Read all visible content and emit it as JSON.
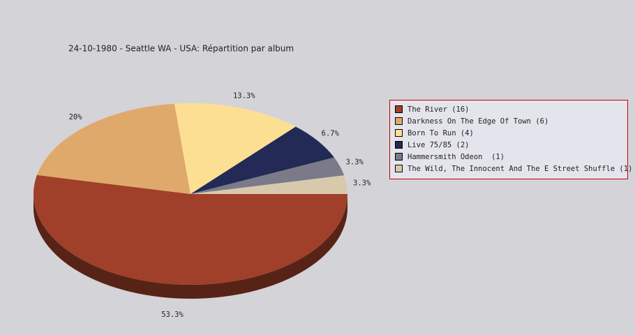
{
  "chart_data": {
    "type": "pie",
    "title": "24-10-1980 - Seattle WA - USA:  Répartition par album",
    "categories": [
      "The River (16)",
      "Darkness On The Edge Of Town (6)",
      "Born To Run (4)",
      "Live 75/85 (2)",
      "Hammersmith Odeon  (1)",
      "The Wild, The Innocent And The E Street Shuffle (1)"
    ],
    "values": [
      53.3,
      20,
      13.3,
      6.7,
      3.3,
      3.3
    ],
    "value_labels": [
      "53.3%",
      "20%",
      "13.3%",
      "6.7%",
      "3.3%",
      "3.3%"
    ],
    "colors": [
      "#a0402a",
      "#e0a96c",
      "#fddf94",
      "#222a55",
      "#7a7a88",
      "#d8c9ad"
    ],
    "legend": "right"
  }
}
